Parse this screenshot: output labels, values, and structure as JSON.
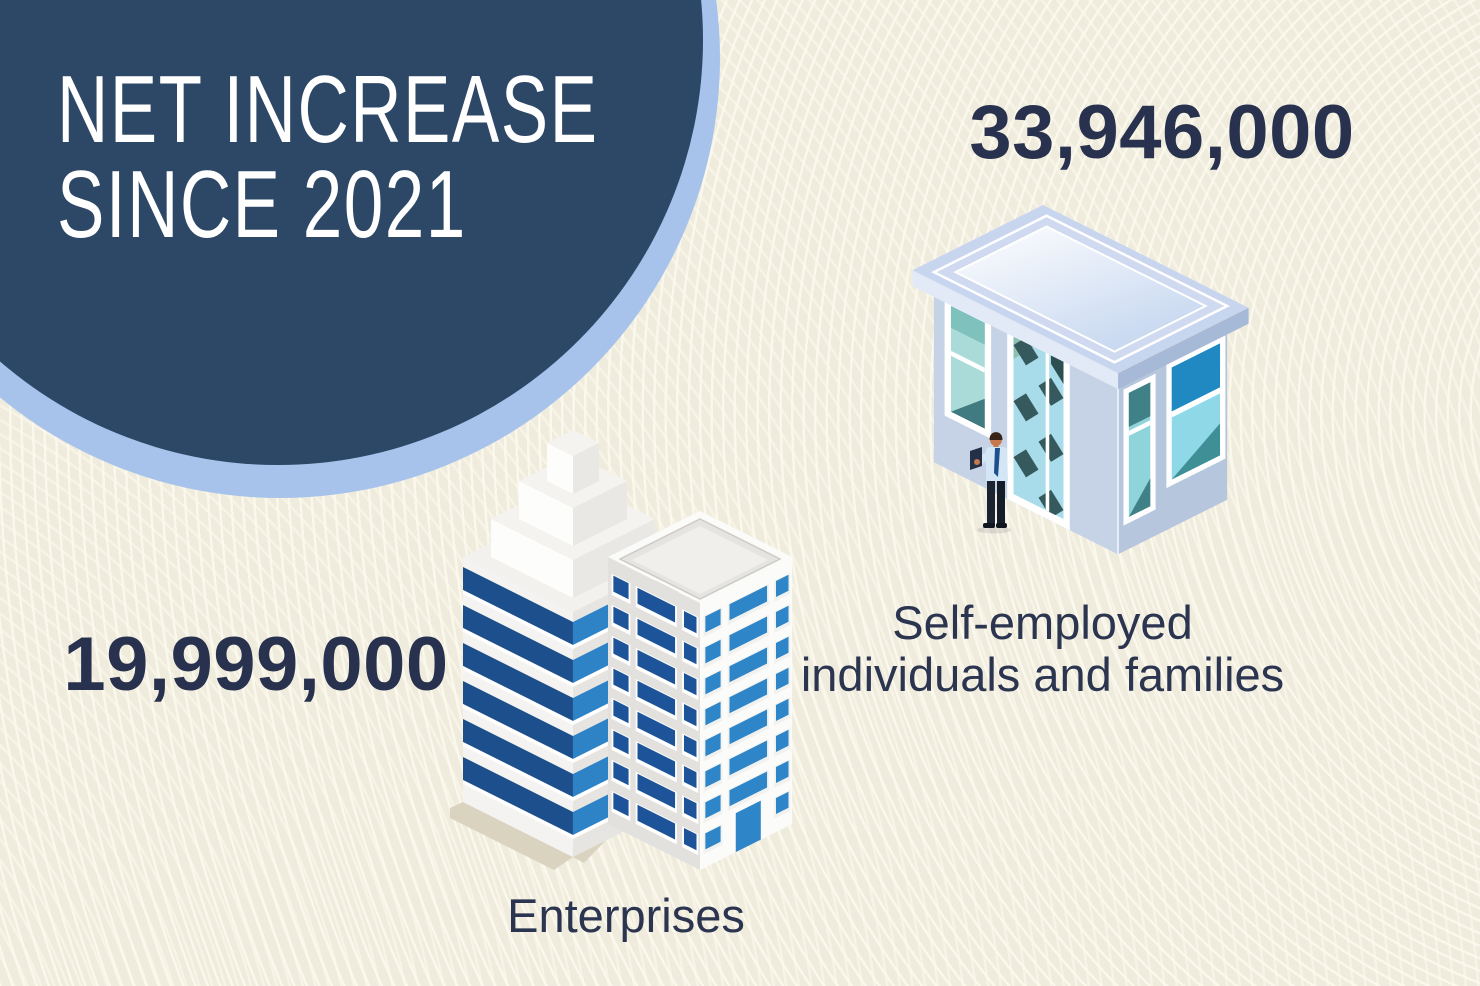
{
  "badge": {
    "title_line1": "NET INCREASE",
    "title_line2": "SINCE 2021",
    "circle_color": "#2d4766",
    "ring_color": "#a7c3eb",
    "text_color": "#ffffff"
  },
  "stats": {
    "self_employed": {
      "value": "33,946,000",
      "label_line1": "Self-employed",
      "label_line2": "individuals and families",
      "icon": "storefront-icon"
    },
    "enterprises": {
      "value": "19,999,000",
      "label": "Enterprises",
      "icon": "office-towers-icon"
    }
  },
  "colors": {
    "background": "#f0ecdd",
    "background_line": "#fbf8ec",
    "text_dark": "#28324e",
    "building_blue_dark": "#1d4f8c",
    "building_blue_bright": "#2e86c8",
    "shop_wall": "#c6d3e7",
    "shop_roof": "#c7d5ee",
    "glass_teal": "#8fd4da"
  }
}
